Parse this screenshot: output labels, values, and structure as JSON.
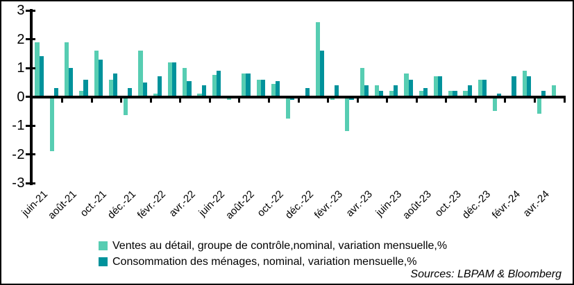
{
  "colors": {
    "series_light": "#57CDB2",
    "series_dark": "#00929B",
    "axis": "#000000",
    "background": "#FFFFFF"
  },
  "y_axis": {
    "tick_labels": [
      "3",
      "2",
      "1",
      "0",
      "-1",
      "-2",
      "-3"
    ],
    "tick_values": [
      3,
      2,
      1,
      0,
      -1,
      -2,
      -3
    ]
  },
  "x_axis": {
    "visible_tick_labels": [
      "juin-21",
      "août-21",
      "oct.-21",
      "déc.-21",
      "févr.-22",
      "avr.-22",
      "juin-22",
      "août-22",
      "oct.-22",
      "déc.-22",
      "févr.-23",
      "avr.-23",
      "juin-23",
      "août-23",
      "oct.-23",
      "déc.-23",
      "févr.-24",
      "avr.-24"
    ],
    "label_every": 2
  },
  "legend": {
    "items": [
      {
        "label": "Ventes au détail, groupe de contrôle,nominal, variation mensuelle,%",
        "color": "#57CDB2"
      },
      {
        "label": "Consommation des ménages, nominal, variation mensuelle,%",
        "color": "#00929B"
      }
    ]
  },
  "sources": "Sources: LBPAM & Bloomberg",
  "chart_data": {
    "type": "bar",
    "title": "",
    "xlabel": "",
    "ylabel": "",
    "ylim": [
      -3,
      3
    ],
    "grid": false,
    "legend_position": "bottom",
    "categories": [
      "juin-21",
      "juil.-21",
      "août-21",
      "sept.-21",
      "oct.-21",
      "nov.-21",
      "déc.-21",
      "janv.-22",
      "févr.-22",
      "mars-22",
      "avr.-22",
      "mai-22",
      "juin-22",
      "juil.-22",
      "août-22",
      "sept.-22",
      "oct.-22",
      "nov.-22",
      "déc.-22",
      "janv.-23",
      "févr.-23",
      "mars-23",
      "avr.-23",
      "mai-23",
      "juin-23",
      "juil.-23",
      "août-23",
      "sept.-23",
      "oct.-23",
      "nov.-23",
      "déc.-23",
      "janv.-24",
      "févr.-24",
      "mars-24",
      "avr.-24",
      "mai-24"
    ],
    "series": [
      {
        "name": "Ventes au détail, groupe de contrôle,nominal, variation mensuelle,%",
        "color": "#57CDB2",
        "values": [
          1.9,
          -1.9,
          1.9,
          0.2,
          1.6,
          0.6,
          -0.65,
          1.6,
          0.1,
          1.2,
          1.0,
          0.1,
          0.75,
          -0.1,
          0.8,
          0.6,
          0.45,
          -0.75,
          0,
          2.6,
          -0.1,
          -1.2,
          1.0,
          0.4,
          0.2,
          0.8,
          0.2,
          0.7,
          0.2,
          0.2,
          0.6,
          -0.5,
          0,
          0.9,
          -0.6,
          0.4
        ]
      },
      {
        "name": "Consommation des ménages, nominal, variation mensuelle,%",
        "color": "#00929B",
        "values": [
          1.4,
          0.3,
          1.0,
          0.6,
          1.3,
          0.8,
          0.3,
          0.5,
          0.7,
          1.2,
          0.55,
          0.4,
          0.9,
          0,
          0.8,
          0.6,
          0.55,
          -0.1,
          0.3,
          1.6,
          0.4,
          -0.1,
          0.4,
          0.2,
          0.4,
          0.6,
          0.3,
          0.7,
          0.2,
          0.4,
          0.6,
          0.1,
          0.7,
          0.7,
          0.2,
          0
        ]
      }
    ]
  }
}
